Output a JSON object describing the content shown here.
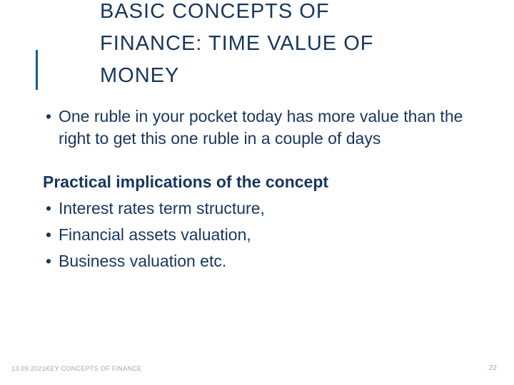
{
  "title": "BASIC CONCEPTS OF FINANCE:  TIME VALUE OF MONEY",
  "body": {
    "intro_bullet": "One ruble in your pocket today has more value than the right to get this one ruble in a couple of days",
    "subtitle": "Practical implications of the concept",
    "bullets": [
      "Interest rates term structure,",
      "Financial assets valuation,",
      "Business valuation etc."
    ]
  },
  "footer": {
    "date": "13.09.2021",
    "label": "KEY CONCEPTS OF FINANCE"
  },
  "page_number": "22",
  "colors": {
    "text_primary": "#17365d",
    "accent_bar": "#1b5a8f",
    "footer_text": "#9aa7b5",
    "background": "#ffffff"
  },
  "typography": {
    "title_fontsize": 29,
    "body_fontsize": 23,
    "footer_fontsize": 9
  }
}
